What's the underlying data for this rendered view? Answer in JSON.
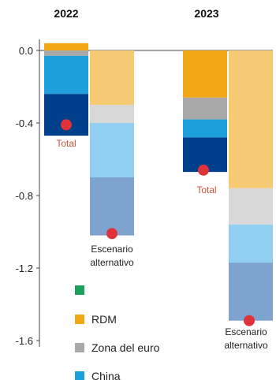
{
  "chart_data": {
    "type": "bar",
    "stacked": true,
    "categories": [
      "2022",
      "2023"
    ],
    "ylim": [
      -1.6,
      0.2
    ],
    "yticks": [
      {
        "value": 0.0,
        "label": "0.0"
      },
      {
        "value": -0.4,
        "label": "-0.4"
      },
      {
        "value": -0.8,
        "label": "-0.8"
      },
      {
        "value": -1.2,
        "label": "-1.2"
      },
      {
        "value": -1.6,
        "label": "-1.6"
      }
    ],
    "colors": {
      "total_rdm": "#f0a914",
      "total_zona": "#a9a9a9",
      "total_china": "#1d9fdc",
      "total_main": "#003f8a",
      "alt_rdm": "#f6ca73",
      "alt_zona": "#d8d8d8",
      "alt_china": "#90cff0",
      "alt_main": "#7ea3cf",
      "marker": "#e0323a",
      "legend_green": "#20a15b"
    },
    "bars": [
      {
        "year": "2022",
        "kind": "total",
        "segments": [
          {
            "from": 0.0,
            "to": 0.04,
            "color_key": "total_rdm"
          },
          {
            "from": 0.0,
            "to": -0.03,
            "color_key": "total_zona"
          },
          {
            "from": -0.03,
            "to": -0.24,
            "color_key": "total_china"
          },
          {
            "from": -0.24,
            "to": -0.47,
            "color_key": "total_main"
          }
        ],
        "marker": -0.41,
        "label": "Total"
      },
      {
        "year": "2022",
        "kind": "alternativo",
        "segments": [
          {
            "from": 0.0,
            "to": -0.3,
            "color_key": "alt_rdm"
          },
          {
            "from": -0.3,
            "to": -0.4,
            "color_key": "alt_zona"
          },
          {
            "from": -0.4,
            "to": -0.7,
            "color_key": "alt_china"
          },
          {
            "from": -0.7,
            "to": -1.02,
            "color_key": "alt_main"
          }
        ],
        "marker": -1.01,
        "label": [
          "Escenario",
          "alternativo"
        ]
      },
      {
        "year": "2023",
        "kind": "total",
        "segments": [
          {
            "from": 0.0,
            "to": -0.26,
            "color_key": "total_rdm"
          },
          {
            "from": -0.26,
            "to": -0.38,
            "color_key": "total_zona"
          },
          {
            "from": -0.38,
            "to": -0.48,
            "color_key": "total_china"
          },
          {
            "from": -0.48,
            "to": -0.67,
            "color_key": "total_main"
          }
        ],
        "marker": -0.66,
        "label": "Total"
      },
      {
        "year": "2023",
        "kind": "alternativo",
        "segments": [
          {
            "from": 0.0,
            "to": -0.76,
            "color_key": "alt_rdm"
          },
          {
            "from": -0.76,
            "to": -0.96,
            "color_key": "alt_zona"
          },
          {
            "from": -0.96,
            "to": -1.17,
            "color_key": "alt_china"
          },
          {
            "from": -1.17,
            "to": -1.49,
            "color_key": "alt_main"
          }
        ],
        "marker": -1.49,
        "label": [
          "Escenario",
          "alternativo"
        ]
      }
    ],
    "legend": [
      {
        "label": "",
        "color_key": "legend_green"
      },
      {
        "label": "RDM",
        "color_key": "total_rdm"
      },
      {
        "label": "Zona del euro",
        "color_key": "total_zona"
      },
      {
        "label": "China",
        "color_key": "total_china"
      }
    ]
  }
}
